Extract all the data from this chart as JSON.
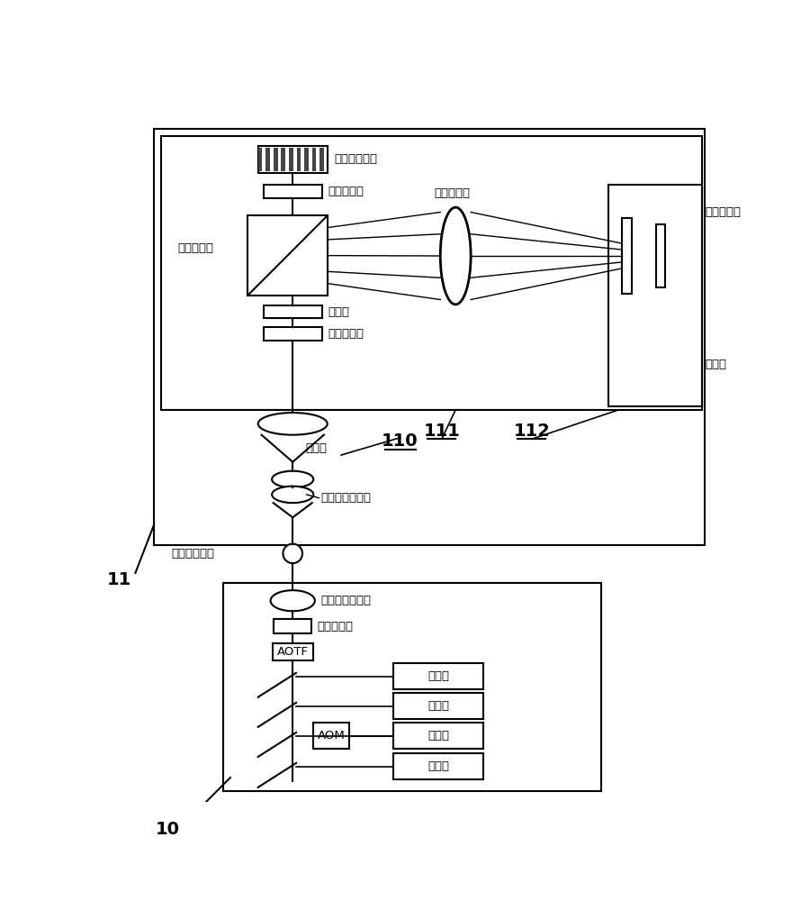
{
  "bg_color": "#ffffff",
  "lc": "#000000",
  "fs": 9.5,
  "labels": {
    "slm": "空间光调制器",
    "hwp3": "第三半波片",
    "fourier": "傅里叶透镜",
    "hwp4": "第四半波片",
    "pbs": "偏振分光镜",
    "filter": "滤光片",
    "hwp2": "第二半波片",
    "pinhole": "针孔板",
    "beam_exp": "扩束镜",
    "fiber2": "第二光纤耦合器",
    "pm_fiber": "保偏单模光纤",
    "fiber1": "第一光纤耦合器",
    "hwp1": "第一半波片",
    "aotf": "AOTF",
    "aom": "AOM",
    "laser": "激光器",
    "ref11": "11",
    "ref10": "10",
    "ref111": "111",
    "ref112": "112",
    "ref110": "110"
  }
}
